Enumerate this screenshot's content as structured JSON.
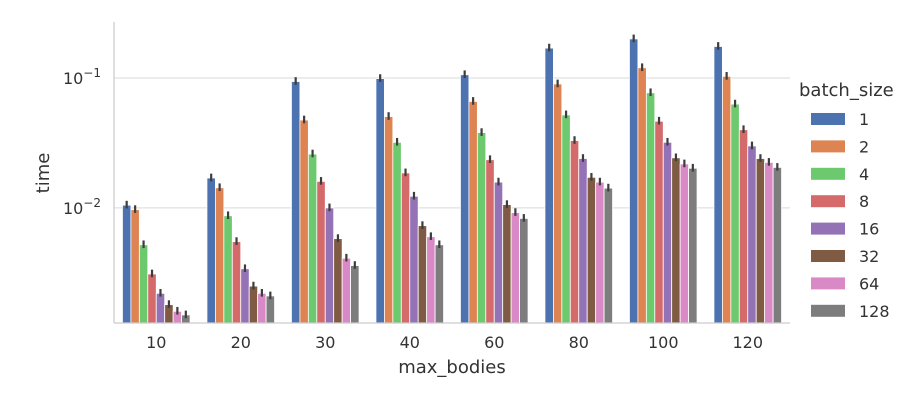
{
  "chart_data": {
    "type": "bar",
    "scale_y": "log",
    "xlabel": "max_bodies",
    "ylabel": "time",
    "ylim": [
      0.0013,
      0.27
    ],
    "yticks": [
      {
        "value": 0.01,
        "label": "10−2",
        "base": "10",
        "exp": "−2"
      },
      {
        "value": 0.1,
        "label": "10−1",
        "base": "10",
        "exp": "−1"
      }
    ],
    "grid": "horizontal",
    "legend": {
      "title": "batch_size",
      "placement": "right"
    },
    "categories": [
      "10",
      "20",
      "30",
      "40",
      "60",
      "80",
      "100",
      "120"
    ],
    "series": [
      {
        "name": "1",
        "color": "#4c72b0",
        "values": [
          0.0105,
          0.017,
          0.094,
          0.099,
          0.106,
          0.17,
          0.2,
          0.175
        ]
      },
      {
        "name": "2",
        "color": "#dd8452",
        "values": [
          0.0097,
          0.0143,
          0.0475,
          0.0505,
          0.066,
          0.09,
          0.12,
          0.103
        ]
      },
      {
        "name": "4",
        "color": "#6dc96d",
        "values": [
          0.0052,
          0.0087,
          0.026,
          0.032,
          0.038,
          0.052,
          0.077,
          0.063
        ]
      },
      {
        "name": "8",
        "color": "#d46a6a",
        "values": [
          0.0031,
          0.0055,
          0.016,
          0.0186,
          0.0235,
          0.033,
          0.0465,
          0.04
        ]
      },
      {
        "name": "16",
        "color": "#9472b6",
        "values": [
          0.0022,
          0.0034,
          0.01,
          0.0123,
          0.0158,
          0.024,
          0.032,
          0.03
        ]
      },
      {
        "name": "32",
        "color": "#7e5b42",
        "values": [
          0.0018,
          0.0025,
          0.0058,
          0.0073,
          0.0106,
          0.0172,
          0.0243,
          0.024
        ]
      },
      {
        "name": "64",
        "color": "#d98ac6",
        "values": [
          0.0016,
          0.0022,
          0.0041,
          0.006,
          0.0092,
          0.0158,
          0.0218,
          0.0224
        ]
      },
      {
        "name": "128",
        "color": "#7d7d7d",
        "values": [
          0.0015,
          0.0021,
          0.0036,
          0.0052,
          0.0083,
          0.0142,
          0.0202,
          0.0205
        ]
      }
    ]
  }
}
